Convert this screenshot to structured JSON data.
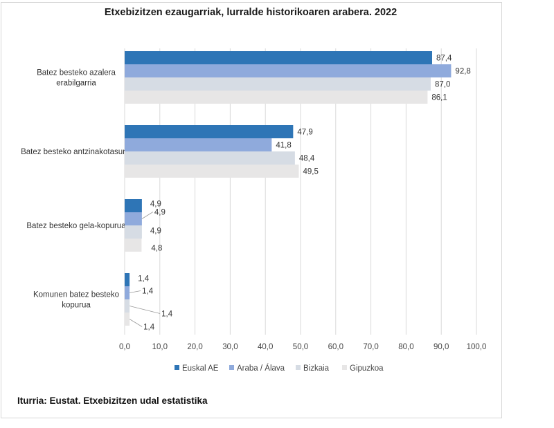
{
  "chart_data": {
    "type": "bar",
    "orientation": "horizontal",
    "title": "Etxebizitzen ezaugarriak, lurralde historikoaren arabera. 2022",
    "categories": [
      "Batez besteko azalera erabilgarria",
      "Batez besteko antzinakotasuna",
      "Batez besteko gela-kopurua",
      "Komunen batez besteko kopurua"
    ],
    "series": [
      {
        "name": "Euskal AE",
        "color": "#2e75b6",
        "values": [
          87.4,
          47.9,
          4.9,
          1.4
        ],
        "labels": [
          "87,4",
          "47,9",
          "4,9",
          "1,4"
        ]
      },
      {
        "name": "Araba / Álava",
        "color": "#8faadc",
        "values": [
          92.8,
          41.8,
          4.9,
          1.4
        ],
        "labels": [
          "92,8",
          "41,8",
          "4,9",
          "1,4"
        ]
      },
      {
        "name": "Bizkaia",
        "color": "#d6dce4",
        "values": [
          87.0,
          48.4,
          4.9,
          1.4
        ],
        "labels": [
          "87,0",
          "48,4",
          "4,9",
          "1,4"
        ]
      },
      {
        "name": "Gipuzkoa",
        "color": "#e7e6e6",
        "values": [
          86.1,
          49.5,
          4.8,
          1.4
        ],
        "labels": [
          "86,1",
          "49,5",
          "4,8",
          "1,4"
        ]
      }
    ],
    "xlim": [
      0,
      100
    ],
    "xticks": [
      "0,0",
      "10,0",
      "20,0",
      "30,0",
      "40,0",
      "50,0",
      "60,0",
      "70,0",
      "80,0",
      "90,0",
      "100,0"
    ],
    "legend_position": "bottom"
  },
  "source": "Iturria: Eustat. Etxebizitzen udal estatistika"
}
